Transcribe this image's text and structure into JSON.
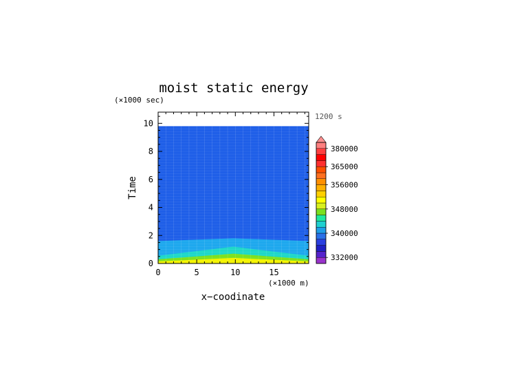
{
  "chart_data": {
    "type": "heatmap",
    "title": "moist static energy",
    "xlabel": "x−coodinate",
    "ylabel": "Time",
    "x_unit": "(×1000 m)",
    "y_unit": "(×1000 sec)",
    "time_annotation": "1200 s",
    "xlim": [
      0,
      19.5
    ],
    "ylim": [
      0,
      10.8
    ],
    "data_ymax": 9.8,
    "x_ticks": [
      0,
      5,
      10,
      15
    ],
    "y_ticks": [
      0,
      2,
      4,
      6,
      8,
      10
    ],
    "colorbar": {
      "tick_labels": [
        "332000",
        "340000",
        "348000",
        "356000",
        "365000",
        "380000"
      ],
      "colors": [
        "#9933cc",
        "#5522cc",
        "#1f1fc4",
        "#2a3fe0",
        "#2a70e8",
        "#1f9ee8",
        "#1fd0d0",
        "#1fe89e",
        "#7ae01f",
        "#d8f01f",
        "#ffff00",
        "#ffd000",
        "#ffb000",
        "#ff9000",
        "#ff7020",
        "#ff5000",
        "#ff3030",
        "#ff0000",
        "#ff4040",
        "#ff8080"
      ]
    },
    "contour_bands": [
      {
        "level_range": "above 340000",
        "color": "#1f5fe8",
        "top_edge_time": 9.8
      },
      {
        "level_range": "340000–344000",
        "color": "#1ea8ee",
        "top_edge_time_at_edges": 1.6,
        "top_edge_time_at_center": 1.8
      },
      {
        "level_range": "344000–348000",
        "color": "#1ed8c8",
        "top_edge_time_at_edges": 0.55,
        "top_edge_time_at_center": 1.2
      },
      {
        "level_range": "348000–352000",
        "color": "#7de01f",
        "top_edge_time_at_edges": 0.3,
        "top_edge_time_at_center": 0.7
      },
      {
        "level_range": "352000–356000",
        "color": "#f4f400",
        "top_edge_time_at_edges": 0.15,
        "top_edge_time_at_center": 0.4
      }
    ]
  }
}
